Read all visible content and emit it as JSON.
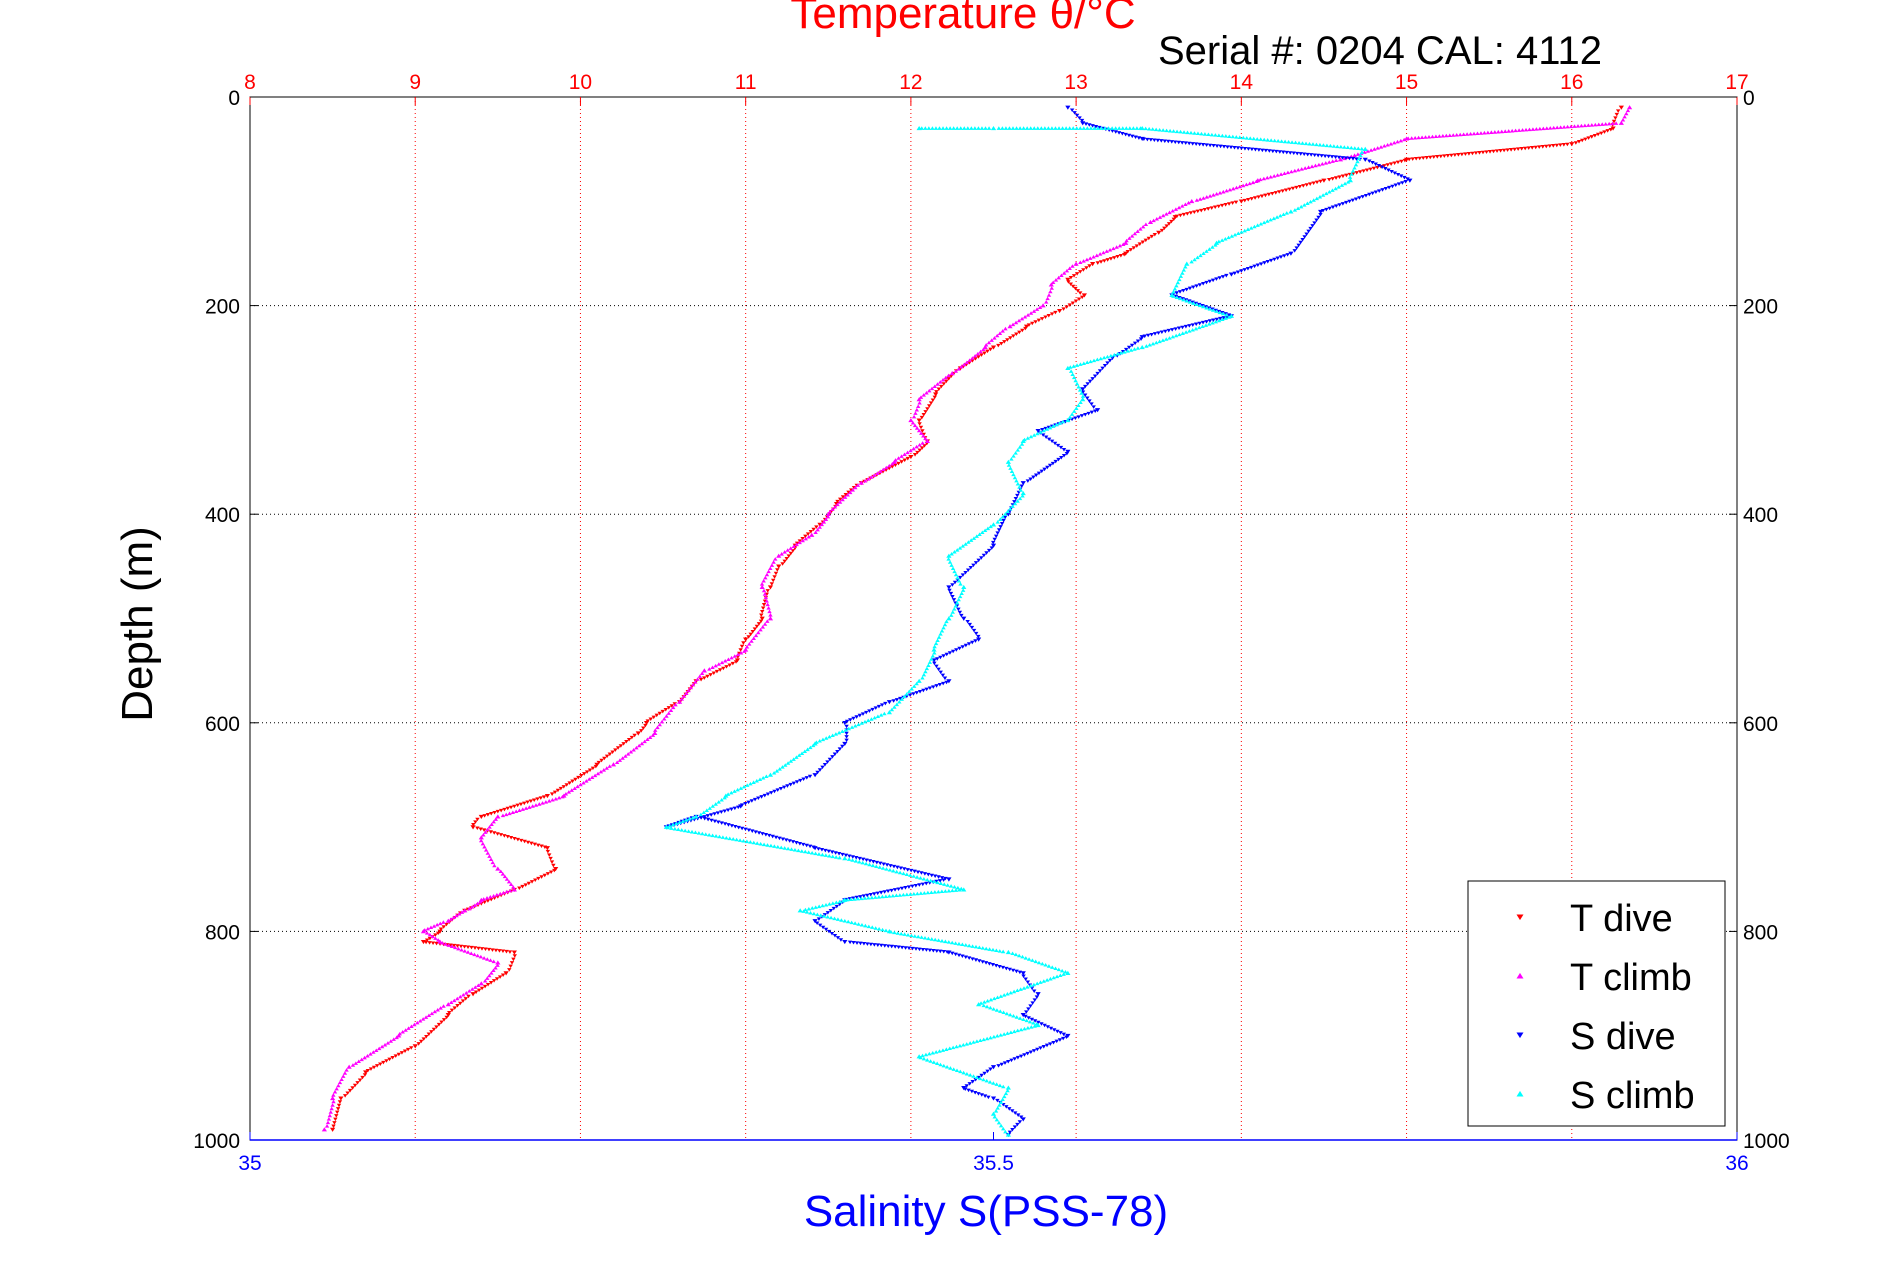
{
  "chart_data": {
    "type": "scatter",
    "title": "Temperature θ/°C",
    "annotation": "Serial #: 0204  CAL: 4112",
    "ylabel": "Depth (m)",
    "xlabel_bottom": "Salinity S(PSS-78)",
    "top_axis": {
      "label": "Temperature θ/°C",
      "range": [
        8,
        17
      ],
      "ticks": [
        "8",
        "9",
        "10",
        "11",
        "12",
        "13",
        "14",
        "15",
        "16",
        "17"
      ],
      "color": "#ff0000"
    },
    "bottom_axis": {
      "label": "Salinity S(PSS-78)",
      "range": [
        35,
        36
      ],
      "ticks": [
        "35",
        "35.5",
        "36"
      ],
      "color": "#0000ff"
    },
    "y_axis": {
      "label": "Depth (m)",
      "range": [
        0,
        1000
      ],
      "reversed": true,
      "ticks": [
        "0",
        "200",
        "400",
        "600",
        "800",
        "1000"
      ]
    },
    "grid": true,
    "legend_position": "bottom-right",
    "series": [
      {
        "name": "T dive",
        "axis": "temperature",
        "color": "#ff0000",
        "marker": "triangle-down",
        "x": [
          16.3,
          16.25,
          16.0,
          15.0,
          14.5,
          14.0,
          13.6,
          13.5,
          13.3,
          13.1,
          12.95,
          13.05,
          12.9,
          12.7,
          12.5,
          12.3,
          12.15,
          12.05,
          12.1,
          12.0,
          11.7,
          11.55,
          11.45,
          11.3,
          11.2,
          11.15,
          11.1,
          11.0,
          10.95,
          10.7,
          10.6,
          10.4,
          10.35,
          10.1,
          9.8,
          9.4,
          9.35,
          9.8,
          9.85,
          9.6,
          9.3,
          9.15,
          9.05,
          9.6,
          9.55,
          9.35,
          9.2,
          9.0,
          8.7,
          8.55,
          8.5
        ],
        "y": [
          10,
          30,
          45,
          60,
          80,
          100,
          115,
          130,
          150,
          160,
          175,
          190,
          205,
          220,
          240,
          260,
          285,
          310,
          330,
          345,
          370,
          390,
          410,
          430,
          450,
          470,
          500,
          520,
          540,
          560,
          580,
          600,
          610,
          640,
          670,
          690,
          700,
          720,
          740,
          760,
          780,
          800,
          810,
          820,
          840,
          860,
          880,
          910,
          935,
          960,
          990
        ]
      },
      {
        "name": "T climb",
        "axis": "temperature",
        "color": "#ff00ff",
        "marker": "triangle-up",
        "x": [
          16.35,
          16.3,
          15.0,
          14.6,
          14.1,
          13.7,
          13.45,
          13.3,
          13.0,
          12.85,
          12.8,
          12.6,
          12.45,
          12.25,
          12.05,
          12.0,
          12.1,
          11.9,
          11.7,
          11.5,
          11.4,
          11.2,
          11.1,
          11.15,
          11.0,
          10.75,
          10.6,
          10.45,
          10.2,
          9.9,
          9.5,
          9.4,
          9.5,
          9.6,
          9.4,
          9.3,
          9.2,
          9.05,
          9.15,
          9.5,
          9.4,
          9.2,
          8.9,
          8.6,
          8.5,
          8.45
        ],
        "y": [
          10,
          25,
          40,
          60,
          80,
          100,
          120,
          140,
          160,
          180,
          200,
          220,
          240,
          265,
          290,
          310,
          330,
          350,
          370,
          400,
          420,
          440,
          470,
          500,
          530,
          550,
          580,
          610,
          640,
          670,
          690,
          710,
          740,
          760,
          770,
          780,
          790,
          800,
          810,
          830,
          850,
          870,
          900,
          930,
          960,
          990
        ]
      },
      {
        "name": "S dive",
        "axis": "salinity",
        "color": "#0000ff",
        "marker": "triangle-down",
        "x": [
          35.55,
          35.56,
          35.6,
          35.75,
          35.78,
          35.72,
          35.7,
          35.66,
          35.62,
          35.66,
          35.6,
          35.58,
          35.56,
          35.57,
          35.53,
          35.55,
          35.52,
          35.51,
          35.5,
          35.47,
          35.48,
          35.49,
          35.46,
          35.47,
          35.43,
          35.4,
          35.4,
          35.38,
          35.33,
          35.28,
          35.3,
          35.38,
          35.47,
          35.4,
          35.38,
          35.4,
          35.47,
          35.52,
          35.53,
          35.52,
          35.55,
          35.5,
          35.48,
          35.5,
          35.52,
          35.51
        ],
        "y": [
          10,
          25,
          40,
          60,
          80,
          110,
          150,
          170,
          190,
          210,
          230,
          250,
          280,
          300,
          320,
          340,
          370,
          400,
          430,
          470,
          500,
          520,
          540,
          560,
          580,
          600,
          620,
          650,
          680,
          700,
          690,
          720,
          750,
          770,
          790,
          810,
          820,
          840,
          860,
          880,
          900,
          930,
          950,
          960,
          980,
          995
        ]
      },
      {
        "name": "S climb",
        "axis": "salinity",
        "color": "#00ffff",
        "marker": "triangle-up",
        "x": [
          35.45,
          35.5,
          35.6,
          35.75,
          35.74,
          35.7,
          35.65,
          35.63,
          35.62,
          35.66,
          35.6,
          35.55,
          35.56,
          35.55,
          35.52,
          35.51,
          35.52,
          35.5,
          35.47,
          35.48,
          35.47,
          35.46,
          35.45,
          35.43,
          35.38,
          35.35,
          35.32,
          35.3,
          35.28,
          35.4,
          35.48,
          35.4,
          35.37,
          35.43,
          35.51,
          35.55,
          35.49,
          35.53,
          35.45,
          35.51,
          35.5,
          35.51
        ],
        "y": [
          30,
          30,
          30,
          50,
          80,
          110,
          140,
          160,
          190,
          210,
          240,
          260,
          290,
          310,
          330,
          350,
          380,
          410,
          440,
          470,
          500,
          530,
          560,
          590,
          620,
          650,
          670,
          690,
          700,
          730,
          760,
          770,
          780,
          800,
          820,
          840,
          870,
          890,
          920,
          950,
          975,
          995
        ]
      }
    ]
  }
}
